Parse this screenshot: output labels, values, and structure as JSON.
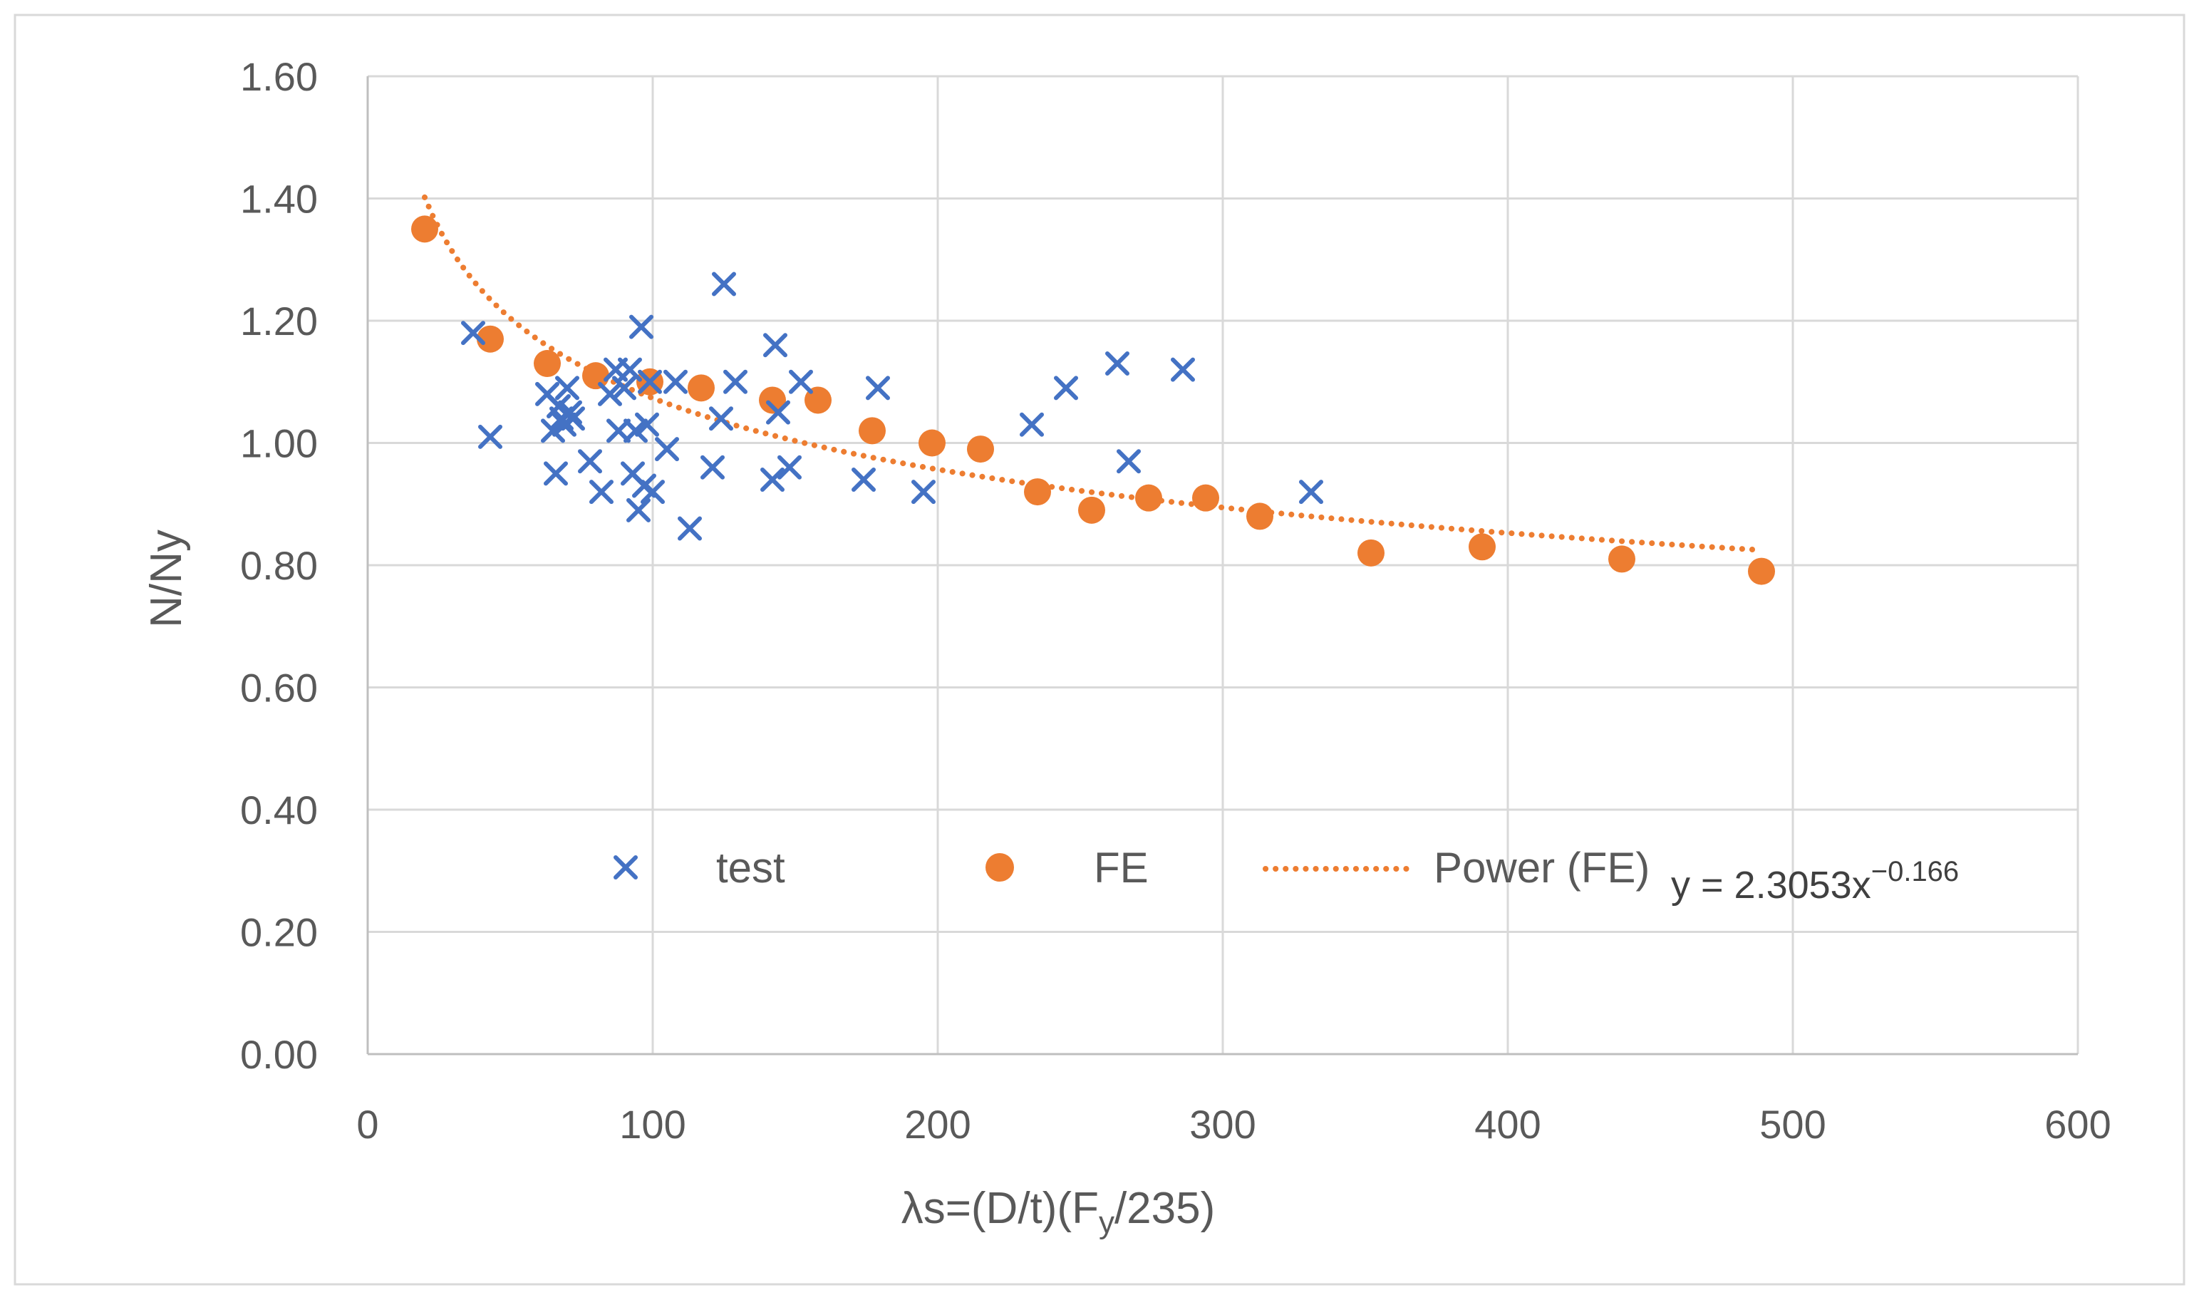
{
  "chart_data": {
    "type": "scatter",
    "xlabel": "λs=(D/t)(F",
    "xlabel_sub": "y",
    "xlabel_tail": "/235)",
    "ylabel": "N/Ny",
    "xlim": [
      0,
      600
    ],
    "ylim": [
      0,
      1.6
    ],
    "x_ticks": [
      "0",
      "100",
      "200",
      "300",
      "400",
      "500",
      "600"
    ],
    "y_ticks": [
      "0.00",
      "0.20",
      "0.40",
      "0.60",
      "0.80",
      "1.00",
      "1.20",
      "1.40",
      "1.60"
    ],
    "grid": true,
    "legend_position": "inside-bottom",
    "series": [
      {
        "name": "test",
        "marker": "x",
        "color": "#4472C4",
        "points": [
          [
            37,
            1.18
          ],
          [
            43,
            1.01
          ],
          [
            63,
            1.08
          ],
          [
            65,
            1.02
          ],
          [
            66,
            0.95
          ],
          [
            67,
            1.06
          ],
          [
            68,
            1.04
          ],
          [
            69,
            1.03
          ],
          [
            70,
            1.09
          ],
          [
            71,
            1.05
          ],
          [
            72,
            1.04
          ],
          [
            78,
            0.97
          ],
          [
            82,
            0.92
          ],
          [
            85,
            1.08
          ],
          [
            87,
            1.12
          ],
          [
            88,
            1.02
          ],
          [
            90,
            1.09
          ],
          [
            92,
            1.12
          ],
          [
            93,
            0.95
          ],
          [
            94,
            1.02
          ],
          [
            95,
            0.89
          ],
          [
            96,
            1.19
          ],
          [
            97,
            0.93
          ],
          [
            98,
            1.03
          ],
          [
            99,
            1.1
          ],
          [
            100,
            0.92
          ],
          [
            105,
            0.99
          ],
          [
            108,
            1.1
          ],
          [
            113,
            0.86
          ],
          [
            121,
            0.96
          ],
          [
            124,
            1.04
          ],
          [
            125,
            1.26
          ],
          [
            129,
            1.1
          ],
          [
            142,
            0.94
          ],
          [
            143,
            1.16
          ],
          [
            144,
            1.05
          ],
          [
            148,
            0.96
          ],
          [
            152,
            1.1
          ],
          [
            174,
            0.94
          ],
          [
            179,
            1.09
          ],
          [
            195,
            0.92
          ],
          [
            233,
            1.03
          ],
          [
            245,
            1.09
          ],
          [
            263,
            1.13
          ],
          [
            267,
            0.97
          ],
          [
            286,
            1.12
          ],
          [
            331,
            0.92
          ]
        ]
      },
      {
        "name": "FE",
        "marker": "circle",
        "color": "#ED7D31",
        "points": [
          [
            20,
            1.35
          ],
          [
            43,
            1.17
          ],
          [
            63,
            1.13
          ],
          [
            80,
            1.11
          ],
          [
            99,
            1.1
          ],
          [
            117,
            1.09
          ],
          [
            142,
            1.07
          ],
          [
            158,
            1.07
          ],
          [
            177,
            1.02
          ],
          [
            198,
            1.0
          ],
          [
            215,
            0.99
          ],
          [
            235,
            0.92
          ],
          [
            254,
            0.89
          ],
          [
            274,
            0.91
          ],
          [
            294,
            0.91
          ],
          [
            313,
            0.88
          ],
          [
            352,
            0.82
          ],
          [
            391,
            0.83
          ],
          [
            440,
            0.81
          ],
          [
            489,
            0.79
          ]
        ]
      },
      {
        "name": "Power (FE)",
        "marker": "dotted-line",
        "color": "#ED7D31",
        "fit": {
          "type": "power",
          "a": 2.3053,
          "b": -0.166,
          "x_from": 20,
          "x_to": 489
        }
      }
    ],
    "annotation": {
      "text_main": "y = 2.3053x",
      "text_sup": "−0.166"
    }
  }
}
